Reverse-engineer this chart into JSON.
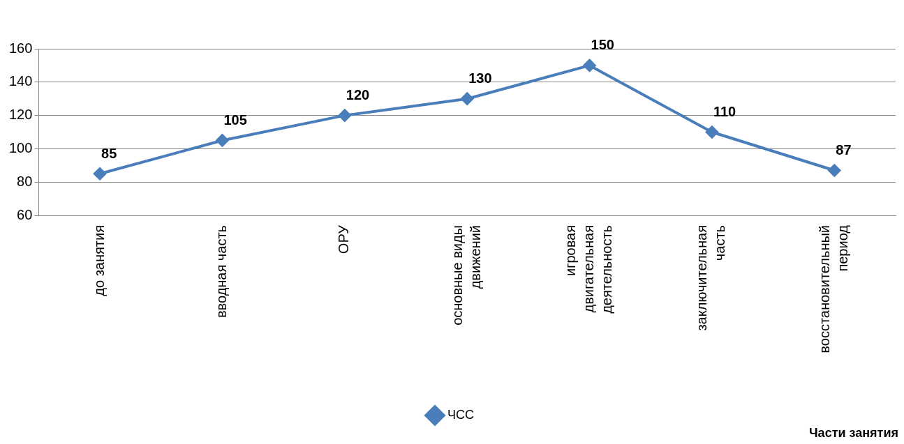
{
  "chart_data": {
    "type": "line",
    "annotations": [
      "Части занятия"
    ],
    "categories": [
      "до занятия",
      "вводная часть",
      "ОРУ",
      "основные виды\nдвижений",
      "игровая\nдвигательная\nдеятельность",
      "заключительная\nчасть",
      "восстановительный\nпериод"
    ],
    "series": [
      {
        "name": "ЧСС",
        "color": "#4a7ebb",
        "values": [
          85,
          105,
          120,
          130,
          150,
          110,
          87
        ]
      }
    ],
    "ylim": [
      60,
      160
    ],
    "yticks": [
      60,
      80,
      100,
      120,
      140,
      160
    ],
    "grid": "y",
    "legend": "bottom",
    "marker": "diamond",
    "line_style": "solid",
    "data_labels": true
  }
}
